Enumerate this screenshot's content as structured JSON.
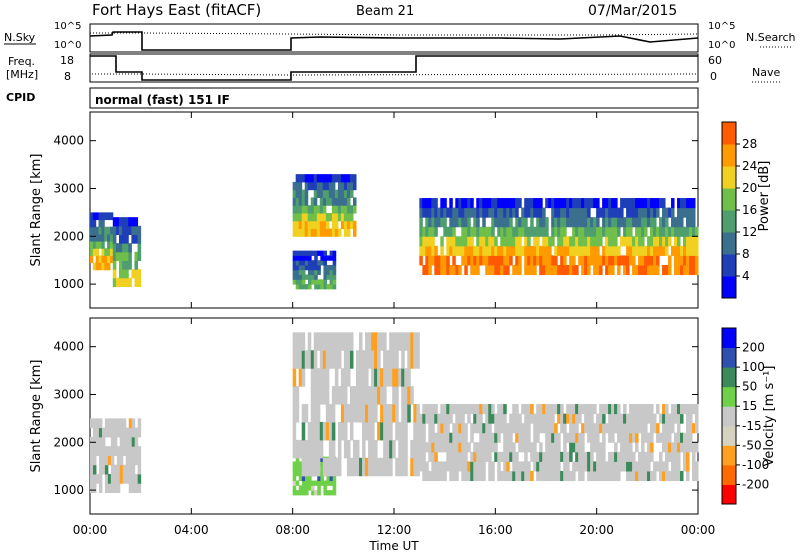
{
  "header": {
    "station": "Fort Hays East (fitACF)",
    "beam": "Beam 21",
    "date": "07/Mar/2015"
  },
  "strips": {
    "nsky_label": "N.Sky",
    "nsky_ticks": [
      "10^5",
      "10^0"
    ],
    "nsearch_label": "N.Search",
    "nsearch_ticks": [
      "10^5",
      "10^0"
    ],
    "freq_label_line1": "Freq.",
    "freq_label_line2": "[MHz]",
    "freq_ticks": [
      "18",
      "8"
    ],
    "nave_label": "Nave",
    "nave_ticks": [
      "60",
      "0"
    ],
    "cpid_label": "CPID",
    "cpid_text": "normal (fast) 151 IF"
  },
  "colors": {
    "power": [
      "#0000ff",
      "#1f3fb8",
      "#3a6f8e",
      "#4f9e6e",
      "#6fbf4a",
      "#f0d020",
      "#ff9a00",
      "#ff5a00",
      "#ff0000"
    ],
    "velocity": [
      "#ff0000",
      "#ff6a00",
      "#ffa020",
      "#d6d2c0",
      "#c8c8c8",
      "#6fd04a",
      "#3a8a5a",
      "#3050b0",
      "#0000ff"
    ],
    "cpid_panel": "#ffffff",
    "ground_scatter": "#c0c0c0"
  },
  "chart_data": [
    {
      "type": "heatmap",
      "name": "power-panel",
      "ylabel": "Slant Range [km]",
      "xlabel": "",
      "y_ticks": [
        1000,
        2000,
        3000,
        4000
      ],
      "ylim": [
        500,
        4600
      ],
      "x_ticks": [
        "00:00",
        "04:00",
        "08:00",
        "12:00",
        "16:00",
        "20:00",
        "00:00"
      ],
      "xlim_hours": [
        0,
        24
      ],
      "colorbar": {
        "label": "Power [dB]",
        "ticks": [
          4,
          8,
          12,
          16,
          20,
          24,
          28
        ]
      },
      "regions": [
        {
          "from_hour": 0.0,
          "to_hour": 0.9,
          "range_km": [
            1300,
            2500
          ],
          "peak_db": 24
        },
        {
          "from_hour": 0.9,
          "to_hour": 2.0,
          "range_km": [
            950,
            2400
          ],
          "peak_db": 20
        },
        {
          "from_hour": 8.0,
          "to_hour": 9.7,
          "range_km": [
            900,
            1700
          ],
          "peak_db": 16
        },
        {
          "from_hour": 8.0,
          "to_hour": 10.5,
          "range_km": [
            2000,
            3300
          ],
          "peak_db": 24
        },
        {
          "from_hour": 13.0,
          "to_hour": 24.0,
          "range_km": [
            1200,
            2800
          ],
          "peak_db": 28
        }
      ]
    },
    {
      "type": "heatmap",
      "name": "velocity-panel",
      "ylabel": "Slant Range [km]",
      "xlabel": "Time UT",
      "y_ticks": [
        1000,
        2000,
        3000,
        4000
      ],
      "ylim": [
        500,
        4600
      ],
      "x_ticks": [
        "00:00",
        "04:00",
        "08:00",
        "12:00",
        "16:00",
        "20:00",
        "00:00"
      ],
      "xlim_hours": [
        0,
        24
      ],
      "colorbar": {
        "label": "Velocity [m s⁻¹]",
        "ticks": [
          -200,
          -100,
          -50,
          -15,
          15,
          50,
          100,
          200
        ]
      },
      "regions": [
        {
          "from_hour": 0.0,
          "to_hour": 2.0,
          "range_km": [
            950,
            2500
          ],
          "velocity_ms": -15
        },
        {
          "from_hour": 8.0,
          "to_hour": 9.7,
          "range_km": [
            900,
            1700
          ],
          "velocity_ms": 50
        },
        {
          "from_hour": 8.0,
          "to_hour": 13.0,
          "range_km": [
            1300,
            4300
          ],
          "velocity_ms": 15
        },
        {
          "from_hour": 13.0,
          "to_hour": 24.0,
          "range_km": [
            1200,
            2800
          ],
          "velocity_ms": 0
        }
      ]
    }
  ]
}
